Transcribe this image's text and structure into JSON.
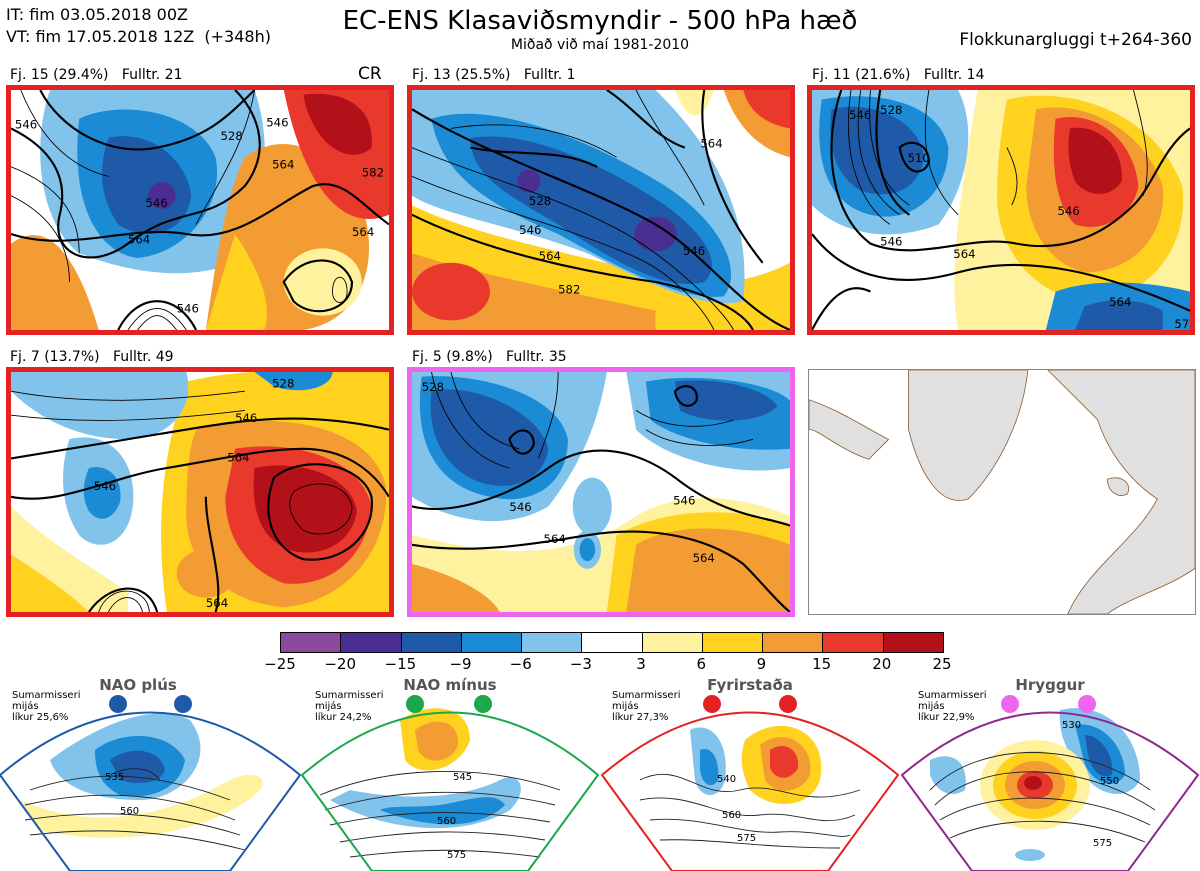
{
  "header": {
    "it": "IT: fim 03.05.2018 00Z",
    "vt": "VT: fim 17.05.2018 12Z  (+348h)",
    "title": "EC-ENS Klasaviðsmyndir - 500 hPa hæð",
    "subtitle": "Miðað við maí 1981-2010",
    "window": "Flokkunargluggi t+264-360"
  },
  "panels": [
    {
      "label": "Fj. 15 (29.4%)   Fulltr. 21",
      "tag": "CR",
      "regime": "Fyrirstaða",
      "contours": [
        "546",
        "528",
        "546",
        "564",
        "546",
        "564",
        "582",
        "546",
        "564"
      ]
    },
    {
      "label": "Fj. 13 (25.5%)   Fulltr. 1",
      "regime": "Fyrirstaða",
      "contours": [
        "528",
        "546",
        "564",
        "582",
        "546",
        "564"
      ]
    },
    {
      "label": "Fj. 11 (21.6%)   Fulltr. 14",
      "regime": "Fyrirstaða",
      "contours": [
        "546",
        "528",
        "510",
        "546",
        "564",
        "546",
        "564",
        "57"
      ]
    },
    {
      "label": "Fj. 7 (13.7%)   Fulltr. 49",
      "regime": "Fyrirstaða",
      "contours": [
        "528",
        "546",
        "546",
        "564",
        "564"
      ]
    },
    {
      "label": "Fj. 5 (9.8%)   Fulltr. 35",
      "regime": "Hryggur",
      "contours": [
        "528",
        "546",
        "546",
        "564",
        "564"
      ]
    }
  ],
  "colorbar": {
    "colors": [
      "#8b4a9c",
      "#4b2e91",
      "#1f5aa8",
      "#1a8bd4",
      "#81c3ea",
      "#ffffff",
      "#fff29e",
      "#ffd21f",
      "#f39c33",
      "#e8392c",
      "#b3111a"
    ],
    "ticks": [
      "−25",
      "−20",
      "−15",
      "−9",
      "−6",
      "−3",
      "3",
      "6",
      "9",
      "15",
      "20",
      "25"
    ]
  },
  "regimes": [
    {
      "name": "NAO plús",
      "season": "Sumarmisseri",
      "period": "mijás",
      "prob": "líkur 25,6%",
      "color": "#1f5aa8",
      "contours": [
        "535",
        "560"
      ]
    },
    {
      "name": "NAO mínus",
      "season": "Sumarmisseri",
      "period": "mijás",
      "prob": "líkur 24,2%",
      "color": "#1aa84a",
      "contours": [
        "545",
        "560",
        "575"
      ]
    },
    {
      "name": "Fyrirstaða",
      "season": "Sumarmisseri",
      "period": "mijás",
      "prob": "líkur 27,3%",
      "color": "#e52222",
      "contours": [
        "540",
        "560",
        "575"
      ]
    },
    {
      "name": "Hryggur",
      "season": "Sumarmisseri",
      "period": "mijás",
      "prob": "líkur 22,9%",
      "color": "#ee66ee",
      "contours": [
        "530",
        "550",
        "575"
      ]
    }
  ]
}
